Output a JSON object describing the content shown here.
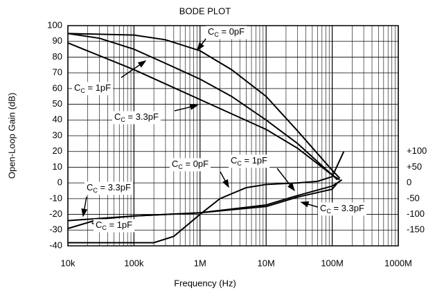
{
  "chart_data": {
    "type": "line",
    "title": "BODE PLOT",
    "xlabel": "Frequency (Hz)",
    "ylabel": "Open-Loop Gain (dB)",
    "xscale": "log",
    "grid": true,
    "color": "#000000",
    "xlim": [
      10000,
      1000000000
    ],
    "xticks": [
      {
        "value": 10000,
        "label": "10k"
      },
      {
        "value": 100000,
        "label": "100k"
      },
      {
        "value": 1000000,
        "label": "1M"
      },
      {
        "value": 10000000,
        "label": "10M"
      },
      {
        "value": 100000000,
        "label": "100M"
      },
      {
        "value": 1000000000,
        "label": "1000M"
      }
    ],
    "ylim": [
      -40,
      100
    ],
    "yticks": [
      -40,
      -30,
      -20,
      -10,
      0,
      10,
      20,
      30,
      40,
      50,
      60,
      70,
      80,
      90,
      100
    ],
    "y2lim": [
      -200,
      500
    ],
    "y2ticks": [
      {
        "value": 100,
        "label": "+100"
      },
      {
        "value": 50,
        "label": "+50"
      },
      0,
      -50,
      -100,
      -150
    ],
    "series": [
      {
        "color": "#000000",
        "x": [
          10000,
          100000,
          300000,
          1000000,
          3000000,
          10000000,
          30000000,
          100000000,
          130000000
        ],
        "values": [
          95,
          94,
          91,
          84,
          72,
          55,
          33,
          8,
          3
        ]
      },
      {
        "color": "#000000",
        "x": [
          10000,
          30000,
          100000,
          300000,
          1000000,
          3000000,
          10000000,
          30000000,
          100000000,
          120000000
        ],
        "values": [
          95,
          92,
          85,
          76,
          66,
          55,
          40,
          25,
          5,
          2
        ]
      },
      {
        "color": "#000000",
        "x": [
          10000,
          100000,
          1000000,
          10000000,
          30000000,
          100000000,
          130000000
        ],
        "values": [
          89,
          72,
          53,
          34,
          22,
          5,
          2
        ]
      },
      {
        "color": "#000000",
        "axis": "y2",
        "x": [
          10000,
          200000,
          400000,
          1000000,
          2000000,
          5000000,
          10000000,
          30000000,
          60000000,
          100000000,
          150000000
        ],
        "values": [
          -190,
          -190,
          -170,
          -100,
          -50,
          -15,
          -5,
          0,
          5,
          20,
          100
        ]
      },
      {
        "color": "#000000",
        "axis": "y2",
        "x": [
          10000,
          30000,
          100000,
          1000000,
          10000000,
          30000000,
          100000000,
          120000000,
          140000000
        ],
        "values": [
          -145,
          -115,
          -105,
          -95,
          -75,
          -45,
          -20,
          0,
          10
        ]
      },
      {
        "color": "#000000",
        "axis": "y2",
        "x": [
          10000,
          100000,
          1000000,
          10000000,
          30000000,
          100000000,
          130000000
        ],
        "values": [
          -120,
          -105,
          -95,
          -70,
          -40,
          -10,
          5
        ]
      }
    ],
    "annotations": [
      {
        "base": "C",
        "sub": "C",
        "text": " = 0pF"
      },
      {
        "base": "C",
        "sub": "C",
        "text": " = 1pF"
      },
      {
        "base": "C",
        "sub": "C",
        "text": " = 3.3pF"
      },
      {
        "base": "C",
        "sub": "C",
        "text": " = 0pF"
      },
      {
        "base": "C",
        "sub": "C",
        "text": " = 1pF"
      },
      {
        "base": "C",
        "sub": "C",
        "text": " = 3.3pF"
      },
      {
        "base": "C",
        "sub": "C",
        "text": " = 1pF"
      },
      {
        "base": "C",
        "sub": "C",
        "text": " = 3.3pF"
      }
    ]
  }
}
